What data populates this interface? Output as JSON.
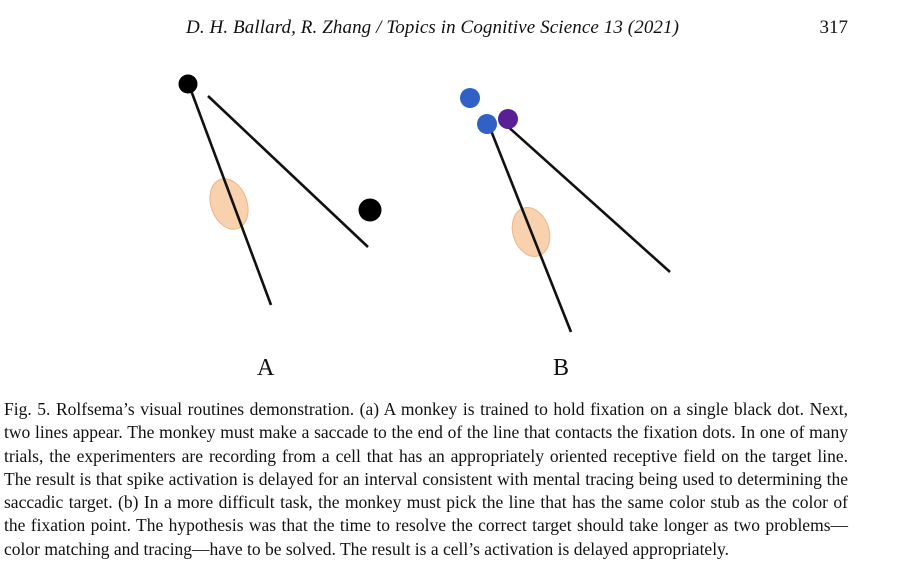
{
  "header": {
    "running_head": "D. H. Ballard, R. Zhang / Topics in Cognitive Science  13 (2021)",
    "page_number": "317"
  },
  "figure": {
    "panel_a_label": "A",
    "panel_b_label": "B",
    "colors": {
      "line": "#111111",
      "fixation_dot": "#000000",
      "receptive_field": "#f7c9a0",
      "blue_dot": "#2f62c4",
      "purple_dot": "#5a1f94"
    }
  },
  "caption": {
    "text": "Fig. 5. Rolfsema’s visual routines demonstration. (a) A monkey is trained to hold fixation on a single black dot. Next, two lines appear. The monkey must make a saccade to the end of the line that contacts the fixation dots. In one of many trials, the experimenters are recording from a cell that has an appropriately oriented receptive field on the target line. The result is that spike activation is delayed for an interval consistent with mental tracing being used to determining the saccadic target. (b) In a more difficult task, the monkey must pick the line that has the same color stub as the color of the fixation point. The hypothesis was that the time to resolve the correct target should take longer as two problems—color matching and tracing—have to be solved. The result is a cell’s activation is delayed appropriately."
  }
}
